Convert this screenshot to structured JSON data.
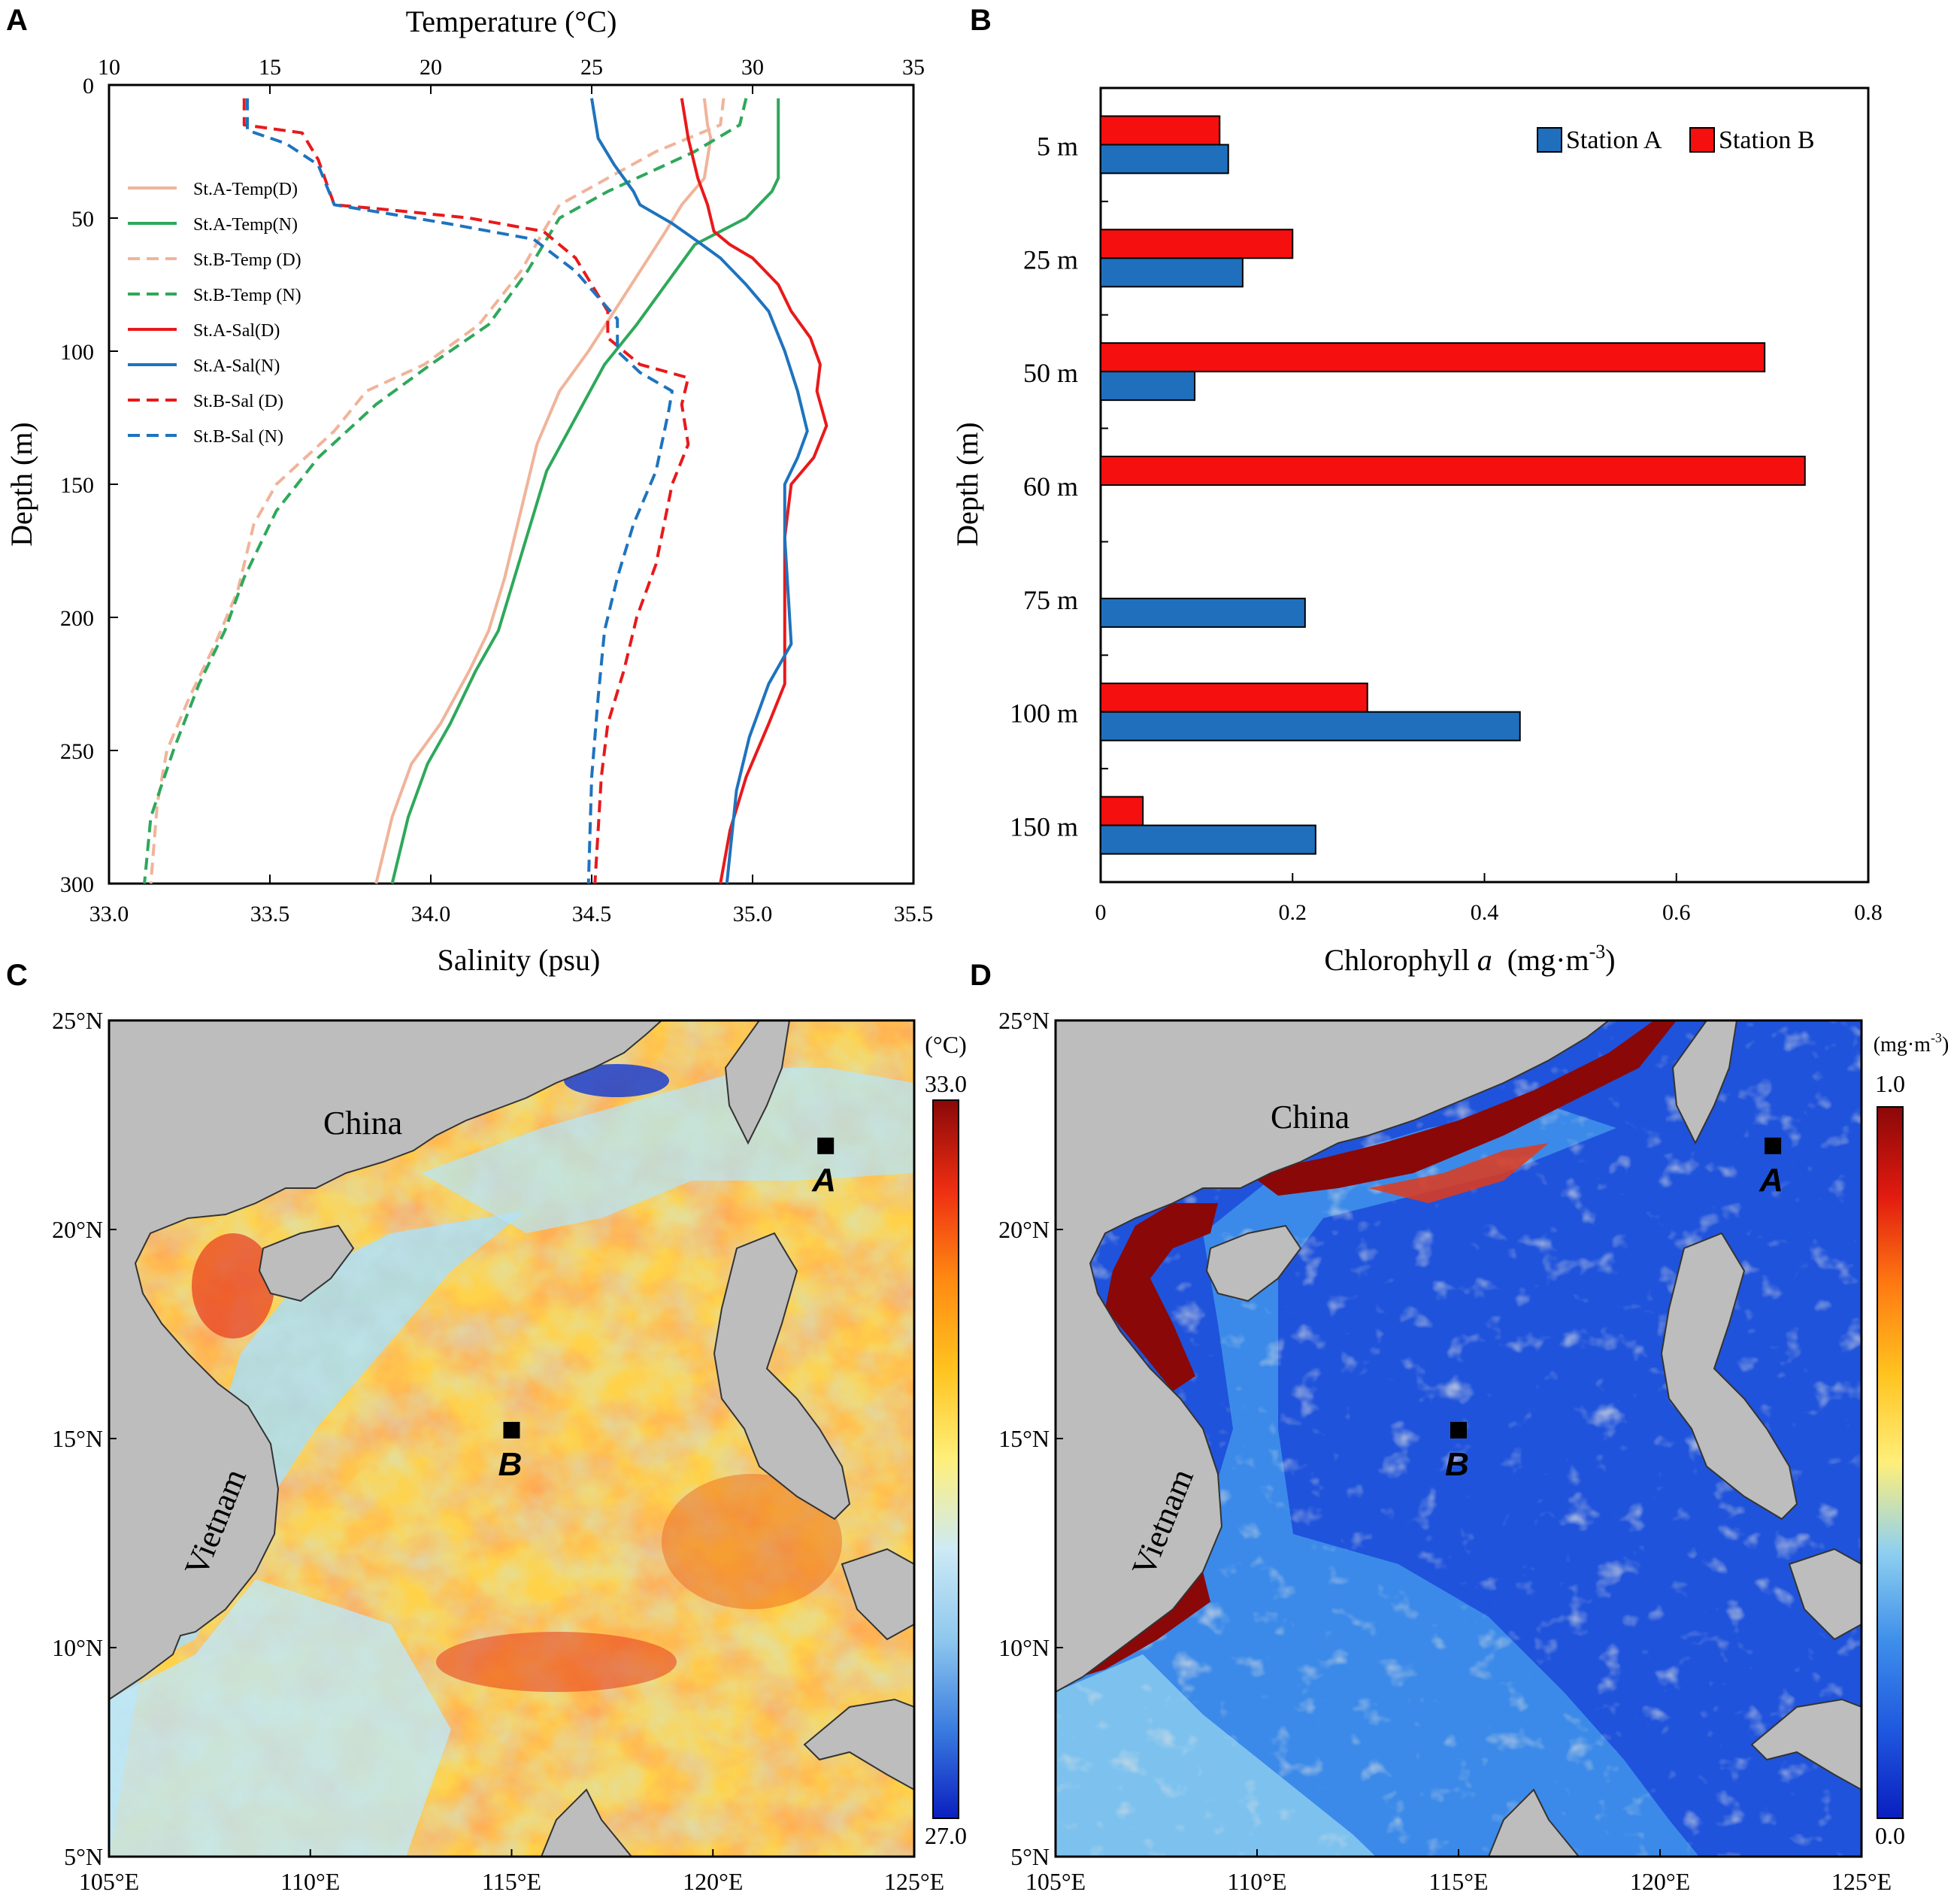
{
  "figure": {
    "panels": [
      "A",
      "B",
      "C",
      "D"
    ]
  },
  "chart_data": [
    {
      "panel": "A",
      "type": "line",
      "title": "",
      "xlabel_top": "Temperature (°C)",
      "xlabel_bottom": "Salinity (psu)",
      "ylabel": "Depth (m)",
      "temp_range": [
        10,
        35
      ],
      "sal_range": [
        33.0,
        35.5
      ],
      "depth_range": [
        0,
        300
      ],
      "depth_inverted": true,
      "temp_ticks": [
        "10",
        "15",
        "20",
        "25",
        "30",
        "35"
      ],
      "sal_ticks": [
        "33.0",
        "33.5",
        "34.0",
        "34.5",
        "35.0",
        "35.5"
      ],
      "depth_ticks": [
        "0",
        "50",
        "100",
        "150",
        "200",
        "250",
        "300"
      ],
      "legend_position": "upper-left",
      "series": [
        {
          "name": "St.A-Temp(D)",
          "axis": "temperature",
          "color": "#f0b49a",
          "dash": false,
          "x": [
            28.5,
            28.6,
            28.7,
            28.5,
            27.8,
            27.3,
            26.5,
            25.7,
            24.9,
            24.0,
            23.3,
            22.8,
            22.3,
            21.8,
            21.2,
            20.3,
            19.4,
            18.8,
            18.3
          ],
          "y": [
            5,
            15,
            20,
            35,
            45,
            55,
            70,
            85,
            100,
            115,
            135,
            160,
            185,
            205,
            220,
            240,
            255,
            275,
            300
          ]
        },
        {
          "name": "St.A-Temp(N)",
          "axis": "temperature",
          "color": "#2ea85a",
          "dash": false,
          "x": [
            30.8,
            30.8,
            30.8,
            30.6,
            29.8,
            28.2,
            27.3,
            26.4,
            25.4,
            24.5,
            23.6,
            23.1,
            22.6,
            22.1,
            21.4,
            20.6,
            19.9,
            19.3,
            18.8
          ],
          "y": [
            5,
            20,
            35,
            40,
            50,
            60,
            75,
            90,
            105,
            125,
            145,
            165,
            185,
            205,
            220,
            240,
            255,
            275,
            300
          ]
        },
        {
          "name": "St.B-Temp (D)",
          "axis": "temperature",
          "color": "#f0b49a",
          "dash": true,
          "x": [
            29.1,
            29.0,
            27.0,
            24.0,
            23.5,
            22.8,
            21.5,
            19.8,
            18.0,
            17.0,
            15.2,
            14.5,
            14.0,
            13.3,
            12.5,
            11.8,
            11.5,
            11.3
          ],
          "y": [
            5,
            15,
            25,
            45,
            55,
            70,
            90,
            105,
            115,
            130,
            150,
            165,
            190,
            210,
            230,
            250,
            270,
            300
          ]
        },
        {
          "name": "St.B-Temp (N)",
          "axis": "temperature",
          "color": "#2ea85a",
          "dash": true,
          "x": [
            29.8,
            29.6,
            28.2,
            25.5,
            24.0,
            23.5,
            23.0,
            21.8,
            20.0,
            18.3,
            16.5,
            15.2,
            14.2,
            13.6,
            12.8,
            12.0,
            11.3,
            11.1
          ],
          "y": [
            5,
            15,
            25,
            40,
            50,
            60,
            70,
            90,
            105,
            120,
            140,
            160,
            185,
            205,
            225,
            250,
            275,
            300
          ]
        },
        {
          "name": "St.A-Sal(D)",
          "axis": "salinity",
          "color": "#e8191b",
          "dash": false,
          "x": [
            34.78,
            34.8,
            34.83,
            34.86,
            34.88,
            34.93,
            35.0,
            35.08,
            35.12,
            35.18,
            35.21,
            35.2,
            35.23,
            35.19,
            35.12,
            35.1,
            35.1,
            35.1,
            35.1,
            35.05,
            34.98,
            34.93,
            34.9
          ],
          "y": [
            5,
            20,
            35,
            45,
            55,
            60,
            65,
            75,
            85,
            95,
            105,
            115,
            128,
            140,
            150,
            170,
            190,
            210,
            225,
            240,
            260,
            280,
            300
          ]
        },
        {
          "name": "St.A-Sal(N)",
          "axis": "salinity",
          "color": "#1e73be",
          "dash": false,
          "x": [
            34.5,
            34.52,
            34.57,
            34.63,
            34.65,
            34.75,
            34.82,
            34.9,
            34.98,
            35.05,
            35.1,
            35.14,
            35.17,
            35.14,
            35.1,
            35.1,
            35.11,
            35.12,
            35.05,
            34.99,
            34.95,
            34.92
          ],
          "y": [
            5,
            20,
            30,
            40,
            45,
            52,
            58,
            65,
            75,
            85,
            100,
            115,
            130,
            140,
            150,
            170,
            190,
            210,
            225,
            245,
            265,
            300
          ]
        },
        {
          "name": "St.B-Sal (D)",
          "axis": "salinity",
          "color": "#e8191b",
          "dash": true,
          "x": [
            33.42,
            33.42,
            33.6,
            33.65,
            33.7,
            33.88,
            34.12,
            34.35,
            34.45,
            34.55,
            34.55,
            34.65,
            34.8,
            34.78,
            34.8,
            34.75,
            34.7,
            34.64,
            34.6,
            34.55,
            34.53,
            34.52,
            34.51
          ],
          "y": [
            5,
            15,
            18,
            28,
            45,
            47,
            50,
            55,
            65,
            85,
            95,
            105,
            110,
            120,
            135,
            150,
            180,
            200,
            220,
            240,
            260,
            280,
            300
          ]
        },
        {
          "name": "St.B-Sal (N)",
          "axis": "salinity",
          "color": "#1e73be",
          "dash": true,
          "x": [
            33.43,
            33.43,
            33.55,
            33.65,
            33.7,
            33.85,
            34.05,
            34.32,
            34.45,
            34.58,
            34.58,
            34.65,
            34.75,
            34.74,
            34.7,
            34.63,
            34.58,
            34.54,
            34.52,
            34.5,
            34.49
          ],
          "y": [
            5,
            17,
            22,
            30,
            45,
            48,
            52,
            58,
            70,
            88,
            100,
            108,
            115,
            122,
            145,
            165,
            185,
            205,
            230,
            260,
            300
          ]
        }
      ]
    },
    {
      "panel": "B",
      "type": "bar",
      "orientation": "horizontal",
      "xlabel_main": "Chlorophyll ",
      "xlabel_var": "a",
      "xlabel_unit": "  (mg·m",
      "xlabel_exp": "-3",
      "xlabel_close": ")",
      "ylabel": "Depth (m)",
      "xlim": [
        0,
        0.8
      ],
      "x_ticks": [
        "0",
        "0.2",
        "0.4",
        "0.6",
        "0.8"
      ],
      "categories": [
        "5 m",
        "25 m",
        "50 m",
        "60 m",
        "75 m",
        "100 m",
        "150 m"
      ],
      "legend_position": "top-right",
      "series": [
        {
          "name": "Station A",
          "color": "#1f6fbd",
          "values": [
            0.133,
            0.148,
            0.098,
            0,
            0.213,
            0.437,
            0.224
          ]
        },
        {
          "name": "Station B",
          "color": "#f50f0f",
          "values": [
            0.124,
            0.2,
            0.692,
            0.734,
            0,
            0.278,
            0.044
          ]
        }
      ]
    },
    {
      "panel": "C",
      "type": "heatmap",
      "subtype": "map",
      "colorbar_unit": "(°C)",
      "colorbar_max": "33.0",
      "colorbar_min": "27.0",
      "colormap": [
        "#0a1fbf",
        "#3b7de0",
        "#8fc8ee",
        "#cdeaf5",
        "#ffef7a",
        "#ffc31f",
        "#ff8a12",
        "#ee2e12",
        "#8a0808"
      ],
      "lon_ticks": [
        "105°E",
        "110°E",
        "115°E",
        "120°E",
        "125°E"
      ],
      "lat_ticks": [
        "5°N",
        "10°N",
        "15°N",
        "20°N",
        "25°N"
      ],
      "lon_range": [
        105,
        125
      ],
      "lat_range": [
        5,
        25
      ],
      "labels": [
        "China",
        "Vietnam"
      ],
      "stations": [
        {
          "name": "A",
          "lon": 122.8,
          "lat": 22.0
        },
        {
          "name": "B",
          "lon": 115.0,
          "lat": 15.2
        }
      ]
    },
    {
      "panel": "D",
      "type": "heatmap",
      "subtype": "map",
      "colorbar_unit": "(mg·m",
      "colorbar_unit_exp": "-3",
      "colorbar_unit_close": ")",
      "colorbar_max": "1.0",
      "colorbar_min": "0.0",
      "colormap": [
        "#0a1fbf",
        "#1f58e0",
        "#3e8fea",
        "#8fd0f0",
        "#ffef7a",
        "#ffc31f",
        "#ff7a12",
        "#e21a10",
        "#8a0808"
      ],
      "lon_ticks": [
        "105°E",
        "110°E",
        "115°E",
        "120°E",
        "125°E"
      ],
      "lat_ticks": [
        "5°N",
        "10°N",
        "15°N",
        "20°N",
        "25°N"
      ],
      "lon_range": [
        105,
        125
      ],
      "lat_range": [
        5,
        25
      ],
      "labels": [
        "China",
        "Vietnam"
      ],
      "stations": [
        {
          "name": "A",
          "lon": 122.8,
          "lat": 22.0
        },
        {
          "name": "B",
          "lon": 115.0,
          "lat": 15.2
        }
      ]
    }
  ]
}
